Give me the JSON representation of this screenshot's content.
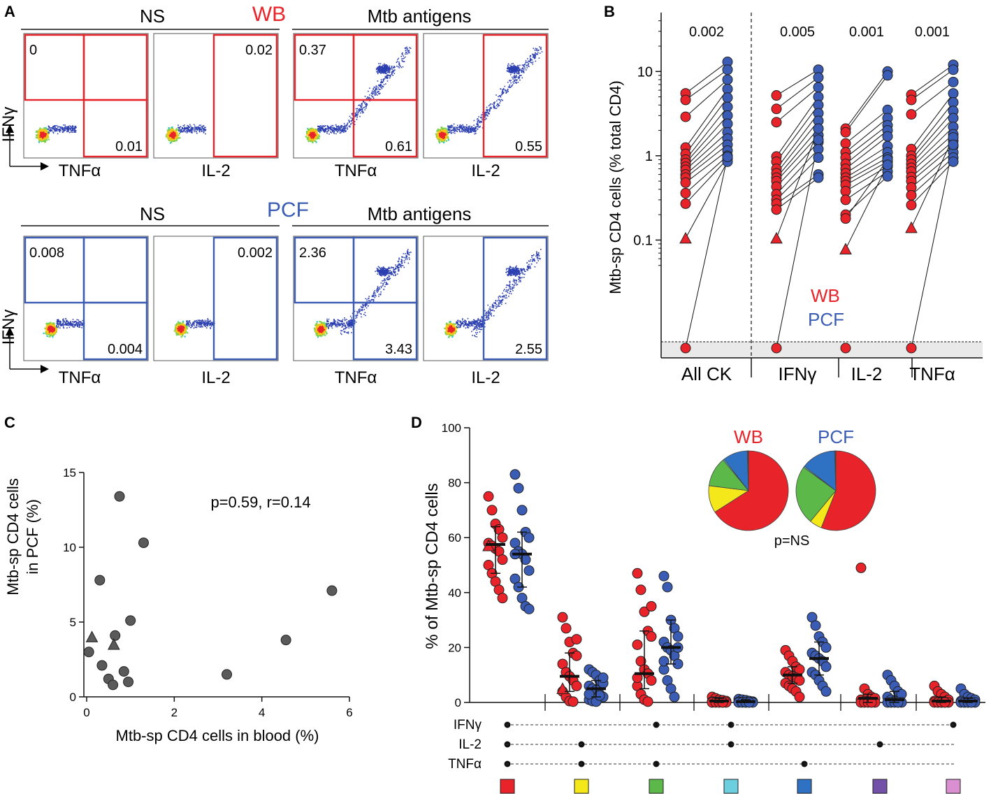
{
  "panel_labels": {
    "a": "A",
    "b": "B",
    "c": "C",
    "d": "D"
  },
  "colors": {
    "wb": "#e8242a",
    "pcf": "#3a5cb5",
    "gray": "#5a5a5a",
    "pie_red": "#e8242a",
    "pie_yellow": "#f5e81a",
    "pie_green": "#5cb848",
    "pie_cyan": "#6ccfe0",
    "pie_blue": "#2f72c4",
    "pie_purple": "#7451a8",
    "pie_pink": "#d98fd0"
  },
  "panel_a": {
    "wb": {
      "title": "WB",
      "groups": [
        "NS",
        "Mtb antigens"
      ],
      "plots": [
        {
          "name": "wb-ns-tnf",
          "gates": [
            "0",
            "0.01"
          ],
          "xlabel": "TNFα",
          "ylabel": "IFNγ",
          "sort": "quad",
          "pop": "none"
        },
        {
          "name": "wb-ns-il2",
          "gates": [
            "0.02"
          ],
          "xlabel": "IL-2",
          "sort": "right",
          "pop": "none"
        },
        {
          "name": "wb-mtb-tnf",
          "gates": [
            "0.37",
            "0.61"
          ],
          "xlabel": "TNFα",
          "sort": "quad",
          "pop": "wb"
        },
        {
          "name": "wb-mtb-il2",
          "gates": [
            "0.55"
          ],
          "xlabel": "IL-2",
          "sort": "right",
          "pop": "wb"
        }
      ]
    },
    "pcf": {
      "title": "PCF",
      "groups": [
        "NS",
        "Mtb antigens"
      ],
      "plots": [
        {
          "name": "pcf-ns-tnf",
          "gates": [
            "0.008",
            "0.004"
          ],
          "xlabel": "TNFα",
          "ylabel": "IFNγ",
          "sort": "quad",
          "pop": "none"
        },
        {
          "name": "pcf-ns-il2",
          "gates": [
            "0.002"
          ],
          "xlabel": "IL-2",
          "sort": "right",
          "pop": "none"
        },
        {
          "name": "pcf-mtb-tnf",
          "gates": [
            "2.36",
            "3.43"
          ],
          "xlabel": "TNFα",
          "sort": "quad",
          "pop": "pcf"
        },
        {
          "name": "pcf-mtb-il2",
          "gates": [
            "2.55"
          ],
          "xlabel": "IL-2",
          "sort": "right",
          "pop": "pcf"
        }
      ]
    }
  },
  "chart_data": [
    {
      "panel": "B",
      "type": "scatter",
      "scale": "log",
      "ylabel": "Mtb-sp CD4 cells (% total CD4)",
      "yticks": [
        "0.1",
        "1",
        "10"
      ],
      "ylim": [
        0.004,
        50
      ],
      "groups": [
        {
          "label": "All CK",
          "pvalue": "0.002",
          "wb": [
            5.5,
            4.6,
            2.9,
            1.25,
            1.05,
            0.9,
            0.82,
            0.74,
            0.68,
            0.6,
            0.55,
            0.48,
            0.36,
            0.27,
            0.105,
            0.0
          ],
          "pcf": [
            13,
            10.5,
            8,
            6.2,
            4.9,
            3.8,
            3.0,
            2.4,
            1.9,
            1.6,
            1.35,
            1.15,
            1.0,
            0.92,
            0.85,
            0.97
          ],
          "triangles": [
            14
          ]
        },
        {
          "label": "IFNγ",
          "pvalue": "0.005",
          "wb": [
            5.2,
            3.6,
            2.5,
            0.98,
            0.85,
            0.7,
            0.62,
            0.55,
            0.5,
            0.43,
            0.35,
            0.3,
            0.27,
            0.23,
            0.105,
            0.0
          ],
          "pcf": [
            10.5,
            8.5,
            6.5,
            5.0,
            4.0,
            3.2,
            2.6,
            2.1,
            1.75,
            1.45,
            1.2,
            0.95,
            0.6,
            0.55,
            2.1,
            1.55
          ],
          "triangles": [
            14
          ]
        },
        {
          "label": "IL-2",
          "pvalue": "0.001",
          "wb": [
            2.1,
            1.9,
            1.4,
            1.1,
            0.95,
            0.8,
            0.7,
            0.62,
            0.55,
            0.5,
            0.45,
            0.38,
            0.3,
            0.2,
            0.18,
            0.078,
            0.0
          ],
          "pcf": [
            10,
            9,
            3.5,
            2.8,
            2.3,
            2.0,
            1.7,
            1.3,
            1.1,
            0.95,
            0.85,
            0.75,
            0.65,
            0.57,
            0.9,
            0.78
          ],
          "triangles": [
            15
          ]
        },
        {
          "label": "TNFα",
          "pvalue": "0.001",
          "wb": [
            5.3,
            4.6,
            3.1,
            1.2,
            1.0,
            0.9,
            0.8,
            0.72,
            0.65,
            0.56,
            0.5,
            0.42,
            0.34,
            0.26,
            0.14,
            0.0
          ],
          "pcf": [
            12,
            10.5,
            7.5,
            5.5,
            4.3,
            3.4,
            2.8,
            2.2,
            1.8,
            1.5,
            1.3,
            1.1,
            0.95,
            0.85,
            1.65,
            1.35
          ],
          "triangles": [
            14
          ]
        }
      ],
      "legend": [
        "WB",
        "PCF"
      ]
    },
    {
      "panel": "C",
      "type": "scatter",
      "xlabel": "Mtb-sp CD4 cells in blood (%)",
      "ylabel_lines": [
        "Mtb-sp CD4 cells",
        "in PCF (%)"
      ],
      "xticks": [
        "0",
        "2",
        "4",
        "6"
      ],
      "yticks": [
        "0",
        "5",
        "10",
        "15"
      ],
      "xlim": [
        0,
        6
      ],
      "ylim": [
        0,
        15
      ],
      "annotation": "p=0.59, r=0.14",
      "points": [
        {
          "x": 0.75,
          "y": 13.4
        },
        {
          "x": 1.3,
          "y": 10.3
        },
        {
          "x": 0.3,
          "y": 7.8
        },
        {
          "x": 5.6,
          "y": 7.1
        },
        {
          "x": 1.0,
          "y": 5.1
        },
        {
          "x": 4.55,
          "y": 3.8
        },
        {
          "x": 0.65,
          "y": 4.1
        },
        {
          "x": 0.05,
          "y": 3.0
        },
        {
          "x": 0.35,
          "y": 2.1
        },
        {
          "x": 0.85,
          "y": 1.7
        },
        {
          "x": 3.2,
          "y": 1.5
        },
        {
          "x": 0.5,
          "y": 1.2
        },
        {
          "x": 0.95,
          "y": 1.0
        },
        {
          "x": 0.6,
          "y": 0.8
        }
      ],
      "triangles": [
        {
          "x": 0.12,
          "y": 4.0
        },
        {
          "x": 0.62,
          "y": 3.5
        }
      ]
    },
    {
      "panel": "D",
      "type": "scatter",
      "ylabel": "% of Mtb-sp CD4 cells",
      "yticks": [
        "0",
        "20",
        "40",
        "60",
        "80",
        "100"
      ],
      "ylim": [
        0,
        100
      ],
      "row_labels": [
        "IFNγ",
        "IL-2",
        "TNFα"
      ],
      "combos": [
        {
          "color": "pie_red",
          "ifng": true,
          "il2": true,
          "tnf": true,
          "wb": {
            "median": 57.5,
            "q1": 47,
            "q3": 64,
            "values": [
              75,
              70,
              65,
              63,
              60,
              58,
              57,
              56,
              55,
              52,
              50,
              47,
              44,
              41,
              38,
              57
            ]
          },
          "pcf": {
            "median": 54,
            "q1": 42,
            "q3": 62,
            "values": [
              83,
              78,
              70,
              62,
              60,
              58,
              55,
              54,
              52,
              48,
              45,
              42,
              38,
              35,
              34,
              54
            ]
          }
        },
        {
          "color": "pie_yellow",
          "ifng": false,
          "il2": true,
          "tnf": true,
          "wb": {
            "median": 9.5,
            "q1": 4,
            "q3": 18,
            "values": [
              31,
              27,
              22,
              18,
              17,
              14,
              11,
              9.5,
              8,
              6,
              4,
              2,
              0.5,
              0.3,
              23,
              5
            ]
          },
          "pcf": {
            "median": 5,
            "q1": 2,
            "q3": 8,
            "values": [
              12,
              11,
              10,
              8,
              7,
              6,
              5,
              4.5,
              3,
              2,
              1,
              0.5,
              0.3,
              2.5,
              9,
              3
            ]
          }
        },
        {
          "color": "pie_green",
          "ifng": true,
          "il2": false,
          "tnf": true,
          "wb": {
            "median": 10.5,
            "q1": 5,
            "q3": 26,
            "values": [
              47,
              41,
              33,
              26,
              24,
              21,
              15,
              12,
              10.5,
              8,
              6,
              3,
              1,
              0.3,
              35,
              9
            ]
          },
          "pcf": {
            "median": 20,
            "q1": 14,
            "q3": 30,
            "values": [
              46,
              42,
              30,
              27,
              24,
              22,
              20,
              19,
              17,
              14,
              12,
              8,
              5,
              2,
              20,
              15
            ]
          }
        },
        {
          "color": "pie_cyan",
          "ifng": true,
          "il2": true,
          "tnf": false,
          "wb": {
            "median": 0.5,
            "q1": 0,
            "q3": 1.5,
            "values": [
              2,
              1.5,
              1,
              0.8,
              0.5,
              0.3,
              0.2,
              0.1,
              0,
              0,
              0,
              0,
              0,
              0
            ]
          },
          "pcf": {
            "median": 0.3,
            "q1": 0,
            "q3": 1,
            "values": [
              1.2,
              1,
              0.8,
              0.5,
              0.3,
              0.2,
              0.1,
              0,
              0,
              0,
              0,
              0,
              0,
              0
            ]
          }
        },
        {
          "color": "pie_blue",
          "ifng": false,
          "il2": false,
          "tnf": true,
          "wb": {
            "median": 10,
            "q1": 7,
            "q3": 13,
            "values": [
              19,
              17,
              15,
              13,
              12,
              11,
              10,
              9.5,
              9,
              8,
              7,
              6,
              5,
              4,
              2
            ]
          },
          "pcf": {
            "median": 16,
            "q1": 10,
            "q3": 22,
            "values": [
              31,
              28,
              24,
              22,
              20,
              18,
              17,
              16,
              15,
              13,
              11,
              10,
              8,
              6,
              4
            ]
          }
        },
        {
          "color": "pie_purple",
          "ifng": false,
          "il2": true,
          "tnf": false,
          "wb": {
            "median": 1.5,
            "q1": 0,
            "q3": 3,
            "values": [
              49,
              5,
              3,
              2,
              1.5,
              1,
              0.5,
              0.3,
              0,
              0,
              0,
              0,
              0,
              0
            ]
          },
          "pcf": {
            "median": 1,
            "q1": 0,
            "q3": 4,
            "values": [
              10,
              8,
              6,
              4,
              3,
              2,
              1,
              0.5,
              0,
              0,
              0,
              0,
              0,
              0
            ]
          }
        },
        {
          "color": "pie_pink",
          "ifng": true,
          "il2": false,
          "tnf": false,
          "wb": {
            "median": 0.5,
            "q1": 0,
            "q3": 2,
            "values": [
              6,
              4,
              3,
              2,
              1,
              0.5,
              0,
              0,
              0,
              0,
              0,
              0,
              0,
              0
            ]
          },
          "pcf": {
            "median": 0.5,
            "q1": 0,
            "q3": 1.5,
            "values": [
              5,
              3,
              2,
              1.5,
              1,
              0.5,
              0,
              0,
              0,
              0,
              0,
              0,
              0,
              0
            ]
          }
        }
      ],
      "pies": [
        {
          "label": "WB",
          "slices": [
            {
              "color": "pie_red",
              "value": 66
            },
            {
              "color": "pie_yellow",
              "value": 11
            },
            {
              "color": "pie_green",
              "value": 12
            },
            {
              "color": "pie_cyan",
              "value": 0.5
            },
            {
              "color": "pie_blue",
              "value": 10
            },
            {
              "color": "pie_purple",
              "value": 0.3
            },
            {
              "color": "pie_pink",
              "value": 0.2
            }
          ]
        },
        {
          "label": "PCF",
          "slices": [
            {
              "color": "pie_red",
              "value": 56
            },
            {
              "color": "pie_yellow",
              "value": 5
            },
            {
              "color": "pie_green",
              "value": 24
            },
            {
              "color": "pie_cyan",
              "value": 0.5
            },
            {
              "color": "pie_blue",
              "value": 14
            },
            {
              "color": "pie_purple",
              "value": 0.3
            },
            {
              "color": "pie_pink",
              "value": 0.2
            }
          ]
        }
      ],
      "pie_annotation": "p=NS"
    }
  ]
}
